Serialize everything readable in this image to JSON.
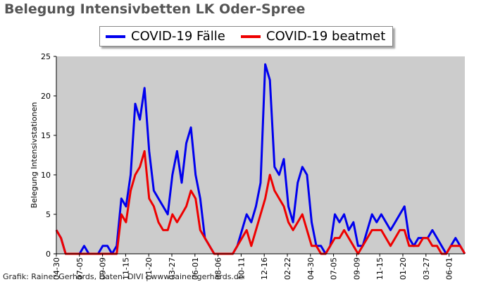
{
  "header": {
    "title": "Belegung Intensivbetten LK Oder-Spree"
  },
  "footer": {
    "credit": "Grafik: Rainer Gerhards, Daten: DIVI | www.rainer-gerhards.de"
  },
  "colors": {
    "series_faelle": "#0000ee",
    "series_beatmet": "#ee0000",
    "plot_background": "#cccccc",
    "title_text": "#555555"
  },
  "chart_data": {
    "type": "line",
    "title": "Belegung Intensivbetten LK Oder-Spree",
    "xlabel": "",
    "ylabel": "Belegung Intensivstationen",
    "ylim": [
      0,
      25
    ],
    "yticks": [
      0,
      5,
      10,
      15,
      20,
      25
    ],
    "grid": false,
    "legend_position": "top",
    "x_tick_labels": [
      "04-30",
      "07-05",
      "09-09",
      "11-15",
      "01-20",
      "03-27",
      "06-01",
      "08-06",
      "10-11",
      "12-16",
      "02-22",
      "04-30",
      "07-05",
      "09-09",
      "11-15",
      "01-20",
      "03-27",
      "06-01"
    ],
    "x": [
      "04-30",
      "05-13",
      "05-26",
      "06-08",
      "06-21",
      "07-05",
      "07-18",
      "07-31",
      "08-13",
      "08-26",
      "09-09",
      "09-22",
      "10-05",
      "10-18",
      "10-31",
      "11-15",
      "11-28",
      "12-11",
      "12-24",
      "01-06",
      "01-20",
      "02-02",
      "02-15",
      "02-28",
      "03-13",
      "03-27",
      "04-09",
      "04-22",
      "05-05",
      "05-18",
      "06-01",
      "06-14",
      "06-27",
      "07-10",
      "07-23",
      "08-06",
      "08-19",
      "09-01",
      "09-14",
      "09-27",
      "10-11",
      "10-24",
      "11-06",
      "11-19",
      "12-02",
      "12-16",
      "12-29",
      "01-11",
      "01-24",
      "02-06",
      "02-22",
      "03-07",
      "03-20",
      "04-02",
      "04-15",
      "04-30",
      "05-13",
      "05-26",
      "06-08",
      "06-21",
      "07-05",
      "07-18",
      "07-31",
      "08-13",
      "08-26",
      "09-09",
      "09-22",
      "10-05",
      "10-18",
      "10-31",
      "11-15",
      "11-28",
      "12-11",
      "12-24",
      "01-06",
      "01-20",
      "02-02",
      "02-15",
      "02-28",
      "03-13",
      "03-27",
      "04-09",
      "04-22",
      "05-05",
      "05-18",
      "06-01",
      "06-14",
      "06-27",
      "07-08"
    ],
    "series": [
      {
        "name": "COVID-19 Fälle",
        "color": "#0000ee",
        "values": [
          3,
          2,
          0,
          0,
          0,
          0,
          1,
          0,
          0,
          0,
          1,
          1,
          0,
          1,
          7,
          6,
          10,
          19,
          17,
          21,
          13,
          8,
          7,
          6,
          5,
          10,
          13,
          9,
          14,
          16,
          10,
          7,
          2,
          1,
          0,
          0,
          0,
          0,
          0,
          1,
          3,
          5,
          4,
          6,
          9,
          24,
          22,
          11,
          10,
          12,
          6,
          4,
          9,
          11,
          10,
          4,
          1,
          1,
          0,
          1,
          5,
          4,
          5,
          3,
          4,
          1,
          1,
          3,
          5,
          4,
          5,
          4,
          3,
          4,
          5,
          6,
          2,
          1,
          2,
          2,
          2,
          3,
          2,
          1,
          0,
          1,
          2,
          1,
          0
        ]
      },
      {
        "name": "COVID-19 beatmet",
        "color": "#ee0000",
        "values": [
          3,
          2,
          0,
          0,
          0,
          0,
          0,
          0,
          0,
          0,
          0,
          0,
          0,
          0,
          5,
          4,
          8,
          10,
          11,
          13,
          7,
          6,
          4,
          3,
          3,
          5,
          4,
          5,
          6,
          8,
          7,
          3,
          2,
          1,
          0,
          0,
          0,
          0,
          0,
          1,
          2,
          3,
          1,
          3,
          5,
          7,
          10,
          8,
          7,
          6,
          4,
          3,
          4,
          5,
          3,
          1,
          1,
          0,
          0,
          1,
          2,
          2,
          3,
          2,
          1,
          0,
          1,
          2,
          3,
          3,
          3,
          2,
          1,
          2,
          3,
          3,
          1,
          1,
          1,
          2,
          2,
          1,
          1,
          0,
          0,
          1,
          1,
          1,
          0
        ]
      }
    ]
  }
}
